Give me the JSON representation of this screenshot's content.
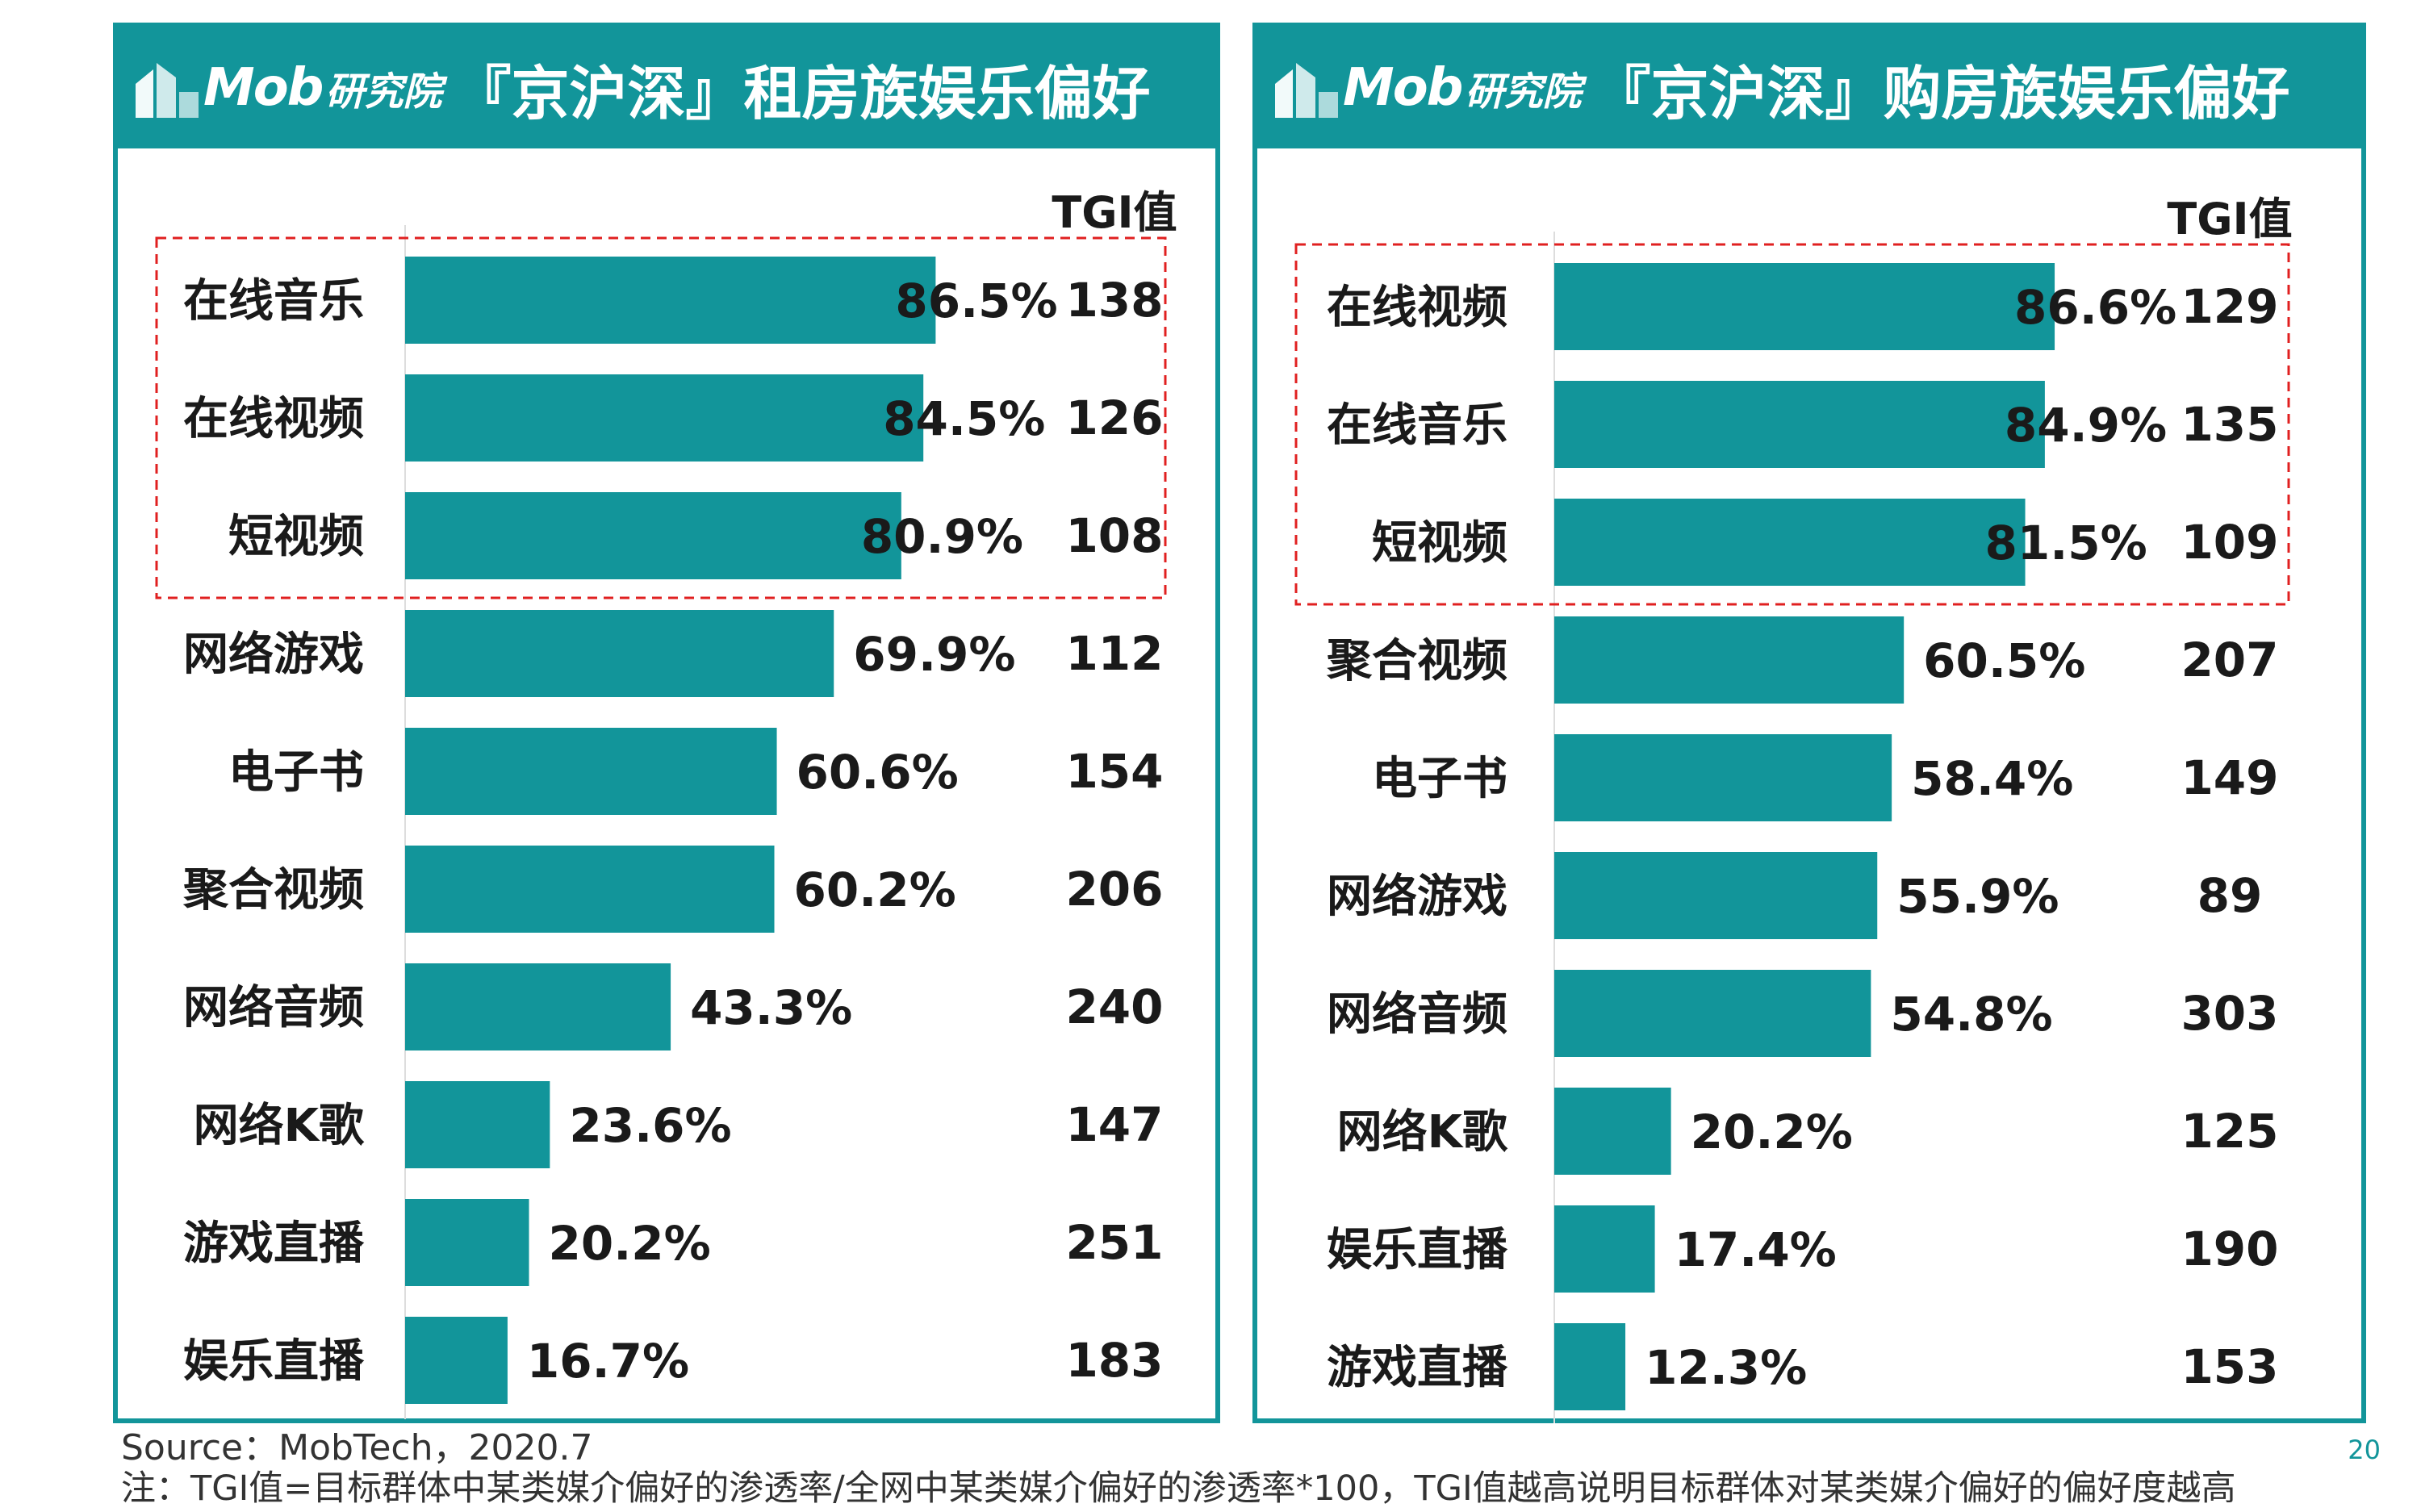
{
  "brand": {
    "logo_text": "Mob",
    "logo_sub": "研究院"
  },
  "colors": {
    "bar": "#12959a",
    "highlight_box": "#e02020",
    "tgi_alert": "#e02020",
    "text": "#1a1a1a"
  },
  "chart_data": [
    {
      "type": "bar",
      "orientation": "horizontal",
      "title": "『京沪深』租房族娱乐偏好",
      "tgi_header": "TGI值",
      "categories": [
        "在线音乐",
        "在线视频",
        "短视频",
        "网络游戏",
        "电子书",
        "聚合视频",
        "网络音频",
        "网络K歌",
        "游戏直播",
        "娱乐直播"
      ],
      "values": [
        86.5,
        84.5,
        80.9,
        69.9,
        60.6,
        60.2,
        43.3,
        23.6,
        20.2,
        16.7
      ],
      "value_labels": [
        "86.5%",
        "84.5%",
        "80.9%",
        "69.9%",
        "60.6%",
        "60.2%",
        "43.3%",
        "23.6%",
        "20.2%",
        "16.7%"
      ],
      "tgi": [
        "138",
        "126",
        "108",
        "112",
        "154",
        "206",
        "240",
        "147",
        "251",
        "183"
      ],
      "tgi_highlight_index": 3,
      "highlight_rows": [
        0,
        1,
        2
      ],
      "xlim": [
        0,
        100
      ]
    },
    {
      "type": "bar",
      "orientation": "horizontal",
      "title": "『京沪深』购房族娱乐偏好",
      "tgi_header": "TGI值",
      "categories": [
        "在线视频",
        "在线音乐",
        "短视频",
        "聚合视频",
        "电子书",
        "网络游戏",
        "网络音频",
        "网络K歌",
        "娱乐直播",
        "游戏直播"
      ],
      "values": [
        86.6,
        84.9,
        81.5,
        60.5,
        58.4,
        55.9,
        54.8,
        20.2,
        17.4,
        12.3
      ],
      "value_labels": [
        "86.6%",
        "84.9%",
        "81.5%",
        "60.5%",
        "58.4%",
        "55.9%",
        "54.8%",
        "20.2%",
        "17.4%",
        "12.3%"
      ],
      "tgi": [
        "129",
        "135",
        "109",
        "207",
        "149",
        "89",
        "303",
        "125",
        "190",
        "153"
      ],
      "tgi_highlight_index": 5,
      "highlight_rows": [
        0,
        1,
        2
      ],
      "xlim": [
        0,
        100
      ]
    }
  ],
  "footer": {
    "source": "Source：MobTech，2020.7",
    "note": "注：TGI值=目标群体中某类媒介偏好的渗透率/全网中某类媒介偏好的渗透率*100，TGI值越高说明目标群体对某类媒介偏好的偏好度越高",
    "page_number": "20"
  }
}
